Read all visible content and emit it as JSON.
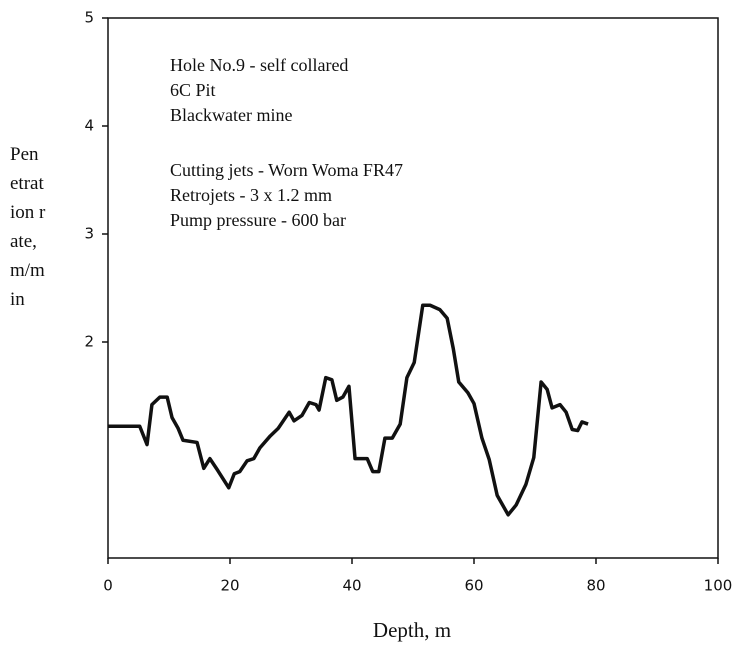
{
  "chart_data": {
    "type": "line",
    "xlabel": "Depth, m",
    "ylabel": "Penetration rate, m/min",
    "annotations": [
      [
        "Hole No.9 - self collared",
        "6C Pit",
        "Blackwater mine"
      ],
      [
        "Cutting jets - Worn Woma FR47",
        "Retrojets - 3 x 1.2 mm",
        "Pump pressure - 600 bar"
      ]
    ],
    "color": "#111111",
    "xlim": [
      0,
      100
    ],
    "xticks": [
      0,
      20,
      40,
      60,
      80,
      100
    ],
    "ylim": [
      0,
      5
    ],
    "yticks": [
      2,
      3,
      4,
      5
    ],
    "x": [
      0,
      5.2,
      6.4,
      7.2,
      8.5,
      9.7,
      10.5,
      11.5,
      12.3,
      14.6,
      15.7,
      16.7,
      18.0,
      19.8,
      20.7,
      21.6,
      22.8,
      23.9,
      24.9,
      26.6,
      27.9,
      29.7,
      30.5,
      31.8,
      33.0,
      34.1,
      34.6,
      35.7,
      36.7,
      37.5,
      38.5,
      39.5,
      40.5,
      42.5,
      43.4,
      44.4,
      45.4,
      46.6,
      47.9,
      49.0,
      50.2,
      51.6,
      52.8,
      54.4,
      55.6,
      56.6,
      57.5,
      59.0,
      60.0,
      61.3,
      62.5,
      63.8,
      65.6,
      66.9,
      68.5,
      69.8,
      71.0,
      72.0,
      72.8,
      74.1,
      75.1,
      76.1,
      77.0,
      77.7,
      78.7
    ],
    "values": [
      1.22,
      1.22,
      1.05,
      1.42,
      1.49,
      1.49,
      1.3,
      1.2,
      1.09,
      1.07,
      0.83,
      0.92,
      0.81,
      0.65,
      0.78,
      0.8,
      0.9,
      0.92,
      1.02,
      1.13,
      1.2,
      1.35,
      1.27,
      1.32,
      1.44,
      1.42,
      1.37,
      1.67,
      1.65,
      1.46,
      1.49,
      1.59,
      0.92,
      0.92,
      0.8,
      0.8,
      1.11,
      1.11,
      1.24,
      1.67,
      1.81,
      2.34,
      2.34,
      2.3,
      2.22,
      1.94,
      1.63,
      1.53,
      1.43,
      1.11,
      0.91,
      0.58,
      0.4,
      0.49,
      0.68,
      0.93,
      1.63,
      1.56,
      1.39,
      1.42,
      1.35,
      1.19,
      1.18,
      1.26,
      1.24
    ]
  }
}
